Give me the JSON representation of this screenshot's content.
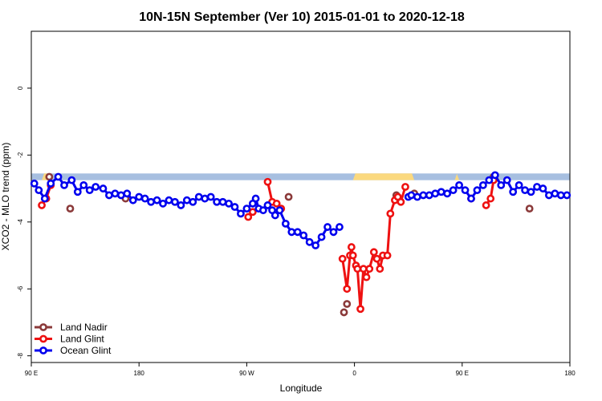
{
  "chart_data": {
    "type": "line",
    "title": "10N-15N September (Ver 10)   2015-01-01 to 2020-12-18",
    "xlabel": "Longitude",
    "ylabel": "XCO2 - MLO trend (ppm)",
    "xlim": [
      90,
      450
    ],
    "ylim": [
      -8.2,
      1.7
    ],
    "x_ticks": [
      {
        "value": 90,
        "label": "90 E"
      },
      {
        "value": 162,
        "label": "180"
      },
      {
        "value": 234,
        "label": "90 W"
      },
      {
        "value": 306,
        "label": "0"
      },
      {
        "value": 378,
        "label": "90 E"
      },
      {
        "value": 450,
        "label": "180"
      }
    ],
    "y_ticks": [
      {
        "value": 0,
        "label": "0"
      },
      {
        "value": -2,
        "label": "-2"
      },
      {
        "value": -4,
        "label": "-4"
      },
      {
        "value": -6,
        "label": "-6"
      },
      {
        "value": -8,
        "label": "-8"
      }
    ],
    "grid": false,
    "legend": "bottom-left",
    "band": {
      "y_top": -2.55,
      "y_bottom": -2.75,
      "ocean_color": "#a7bfe0",
      "land_color": "#fbd97f",
      "land_ranges": [
        [
          97,
          102
        ],
        [
          305,
          346
        ],
        [
          373,
          376
        ],
        [
          396,
          403
        ]
      ]
    },
    "series": [
      {
        "name": "Land Nadir",
        "color": "#8b3a3a",
        "connect": false,
        "x": [
          102,
          116,
          153,
          262,
          299,
          301,
          334,
          346,
          399,
          423
        ],
        "y": [
          -2.65,
          -3.6,
          -3.3,
          -3.25,
          -6.7,
          -6.45,
          -3.2,
          -3.15,
          -2.65,
          -3.6
        ]
      },
      {
        "name": "Land Glint",
        "color": "#ee1111",
        "connect": true,
        "segments": [
          {
            "x": [
              97,
              100,
              103
            ],
            "y": [
              -3.5,
              -3.3,
              -2.9
            ]
          },
          {
            "x": [
              235,
              238
            ],
            "y": [
              -3.85,
              -3.7
            ]
          },
          {
            "x": [
              248,
              251,
              254,
              257
            ],
            "y": [
              -2.8,
              -3.4,
              -3.45,
              -3.6
            ]
          },
          {
            "x": [
              298,
              301,
              303,
              304,
              305,
              307,
              308,
              310,
              312,
              314,
              316,
              319,
              321,
              323,
              325,
              328,
              330,
              333,
              335,
              337,
              340
            ],
            "y": [
              -5.1,
              -6.0,
              -5.0,
              -4.75,
              -5.0,
              -5.3,
              -5.4,
              -6.6,
              -5.4,
              -5.65,
              -5.4,
              -4.9,
              -5.1,
              -5.4,
              -5.0,
              -5.0,
              -3.75,
              -3.35,
              -3.25,
              -3.4,
              -2.95
            ]
          },
          {
            "x": [
              384
            ],
            "y": [
              -3.3
            ]
          },
          {
            "x": [
              394,
              397,
              399
            ],
            "y": [
              -3.5,
              -3.3,
              -2.75
            ]
          }
        ]
      },
      {
        "name": "Ocean Glint",
        "color": "#0000ee",
        "connect": true,
        "segments": [
          {
            "x": [
              92,
              95,
              99,
              103,
              108,
              112,
              117,
              121,
              125,
              129,
              133,
              138,
              142,
              146,
              150,
              154,
              158,
              162,
              166,
              170,
              174,
              178,
              182,
              186,
              190,
              194,
              198,
              202,
              206,
              210,
              214,
              218,
              222,
              226,
              230,
              234,
              238,
              240,
              242,
              245,
              248,
              251,
              253,
              256,
              260,
              264,
              268,
              272,
              276,
              280,
              284,
              288,
              292,
              296
            ],
            "y": [
              -2.85,
              -3.05,
              -3.3,
              -2.85,
              -2.65,
              -2.9,
              -2.75,
              -3.1,
              -2.9,
              -3.05,
              -2.95,
              -3.0,
              -3.2,
              -3.15,
              -3.2,
              -3.15,
              -3.35,
              -3.25,
              -3.3,
              -3.4,
              -3.35,
              -3.45,
              -3.35,
              -3.4,
              -3.5,
              -3.35,
              -3.4,
              -3.25,
              -3.3,
              -3.25,
              -3.4,
              -3.4,
              -3.45,
              -3.55,
              -3.75,
              -3.6,
              -3.45,
              -3.3,
              -3.6,
              -3.65,
              -3.5,
              -3.65,
              -3.8,
              -3.65,
              -4.05,
              -4.3,
              -4.3,
              -4.4,
              -4.6,
              -4.7,
              -4.45,
              -4.15,
              -4.3,
              -4.15
            ]
          },
          {
            "x": [
              342,
              344,
              348,
              352,
              356,
              360,
              364,
              368,
              372,
              376,
              380,
              384,
              388,
              392,
              396,
              400,
              404,
              408,
              412,
              416,
              420,
              424,
              428,
              432,
              436,
              440,
              444,
              448
            ],
            "y": [
              -3.25,
              -3.2,
              -3.25,
              -3.2,
              -3.2,
              -3.15,
              -3.1,
              -3.15,
              -3.05,
              -2.9,
              -3.05,
              -3.3,
              -3.05,
              -2.9,
              -2.75,
              -2.6,
              -2.9,
              -2.75,
              -3.1,
              -2.9,
              -3.05,
              -3.1,
              -2.95,
              -3.0,
              -3.2,
              -3.15,
              -3.2,
              -3.2
            ]
          }
        ]
      }
    ]
  }
}
